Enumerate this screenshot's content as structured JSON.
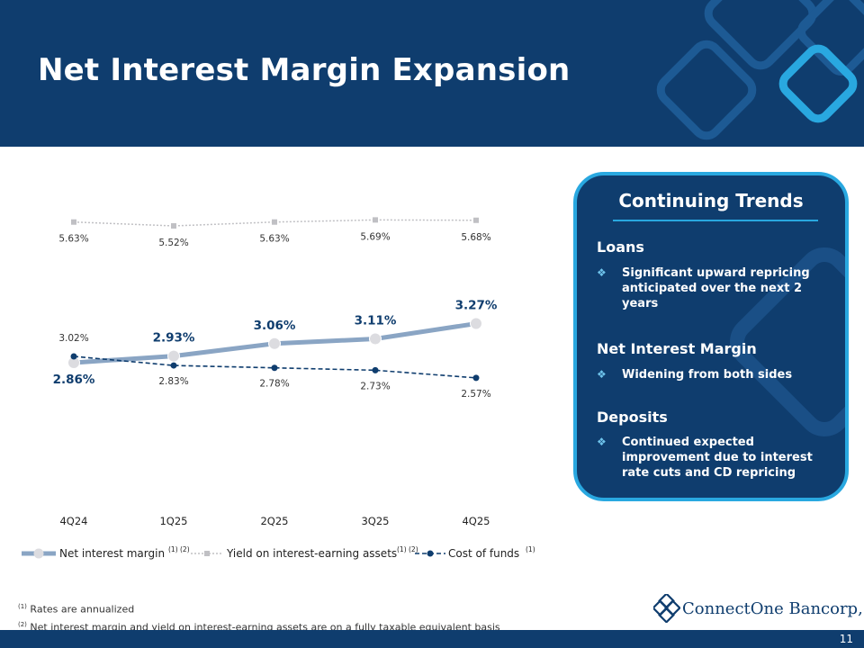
{
  "page": {
    "title": "Net Interest Margin Expansion",
    "page_number": "11"
  },
  "colors": {
    "navy": "#0f3d6e",
    "accent_blue": "#29a8e0",
    "nim_line": "#8aa5c4",
    "yield_line": "#c0c0c4",
    "cost_line": "#0f3d6e"
  },
  "chart_data": {
    "type": "line",
    "categories": [
      "4Q24",
      "1Q25",
      "2Q25",
      "3Q25",
      "4Q25"
    ],
    "series": [
      {
        "name": "Yield on interest-earning assets",
        "values": [
          5.63,
          5.52,
          5.63,
          5.69,
          5.68
        ],
        "labels": [
          "5.63%",
          "5.52%",
          "5.63%",
          "5.69%",
          "5.68%"
        ]
      },
      {
        "name": "Net interest margin",
        "values": [
          2.86,
          2.93,
          3.06,
          3.11,
          3.27
        ],
        "labels": [
          "2.86%",
          "2.93%",
          "3.06%",
          "3.11%",
          "3.27%"
        ]
      },
      {
        "name": "Cost of funds",
        "values": [
          3.02,
          2.83,
          2.78,
          2.73,
          2.57
        ],
        "labels": [
          "3.02%",
          "2.83%",
          "2.78%",
          "2.73%",
          "2.57%"
        ]
      }
    ],
    "legend": [
      {
        "label": "Net interest margin",
        "note": "(1) (2)"
      },
      {
        "label": "Yield on interest-earning assets",
        "note": "(1) (2)"
      },
      {
        "label": "Cost of funds",
        "note": "(1)"
      }
    ],
    "title": "",
    "xlabel": "",
    "ylabel": "",
    "legend_position": "bottom"
  },
  "panel": {
    "title": "Continuing Trends",
    "sections": [
      {
        "heading": "Loans",
        "bullets": [
          "Significant upward repricing anticipated over the next 2 years"
        ]
      },
      {
        "heading": "Net Interest Margin",
        "bullets": [
          "Widening from both sides"
        ]
      },
      {
        "heading": "Deposits",
        "bullets": [
          "Continued expected improvement due to interest rate cuts and CD repricing"
        ]
      }
    ],
    "bullet_icon": "diamond-cluster-icon"
  },
  "footnotes": [
    {
      "mark": "(1)",
      "text": "Rates are annualized"
    },
    {
      "mark": "(2)",
      "text": "Net interest margin and yield on interest-earning assets are on a fully taxable equivalent basis"
    }
  ],
  "logo": {
    "name": "ConnectOne Bancorp, Inc.",
    "icon": "connectone-logo-icon"
  }
}
